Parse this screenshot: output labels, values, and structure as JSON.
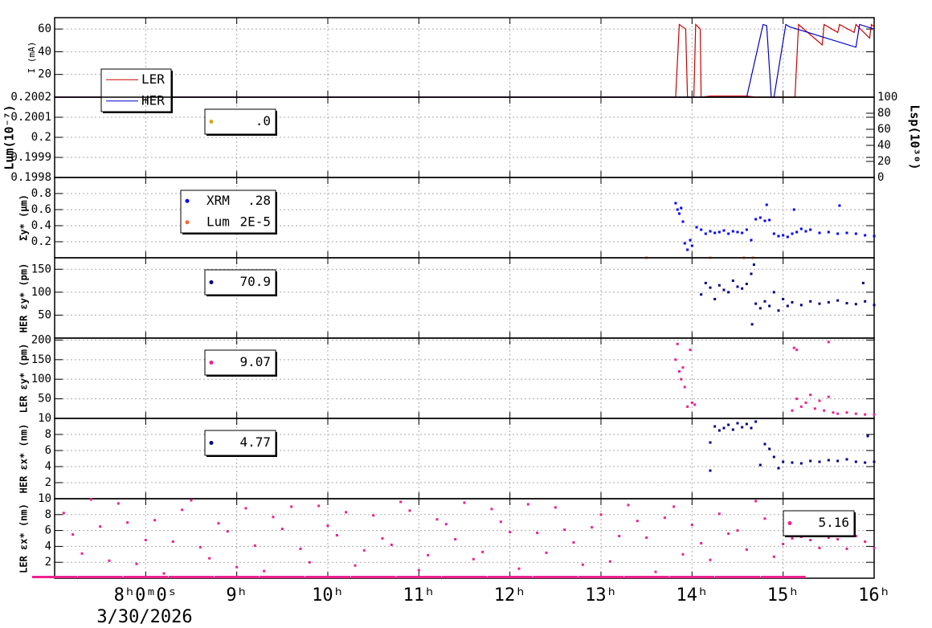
{
  "chart_data": [
    {
      "type": "line",
      "ylabel": "I (mA)",
      "ylim": [
        0,
        70
      ],
      "yticks": [
        20,
        40,
        60
      ],
      "series": [
        {
          "name": "LER",
          "color": "#cc0000",
          "x": [
            7,
            13.82,
            13.86,
            13.93,
            13.95,
            14.02,
            14.04,
            14.09,
            14.1,
            14.2,
            14.6,
            14.7,
            15.13,
            15.17,
            15.43,
            15.45,
            15.6,
            15.62,
            15.78,
            15.8,
            15.95,
            15.97,
            16
          ],
          "values": [
            0,
            0,
            64,
            60,
            0,
            0,
            64,
            60,
            0,
            1,
            1,
            0,
            0,
            64,
            46,
            64,
            57,
            64,
            57,
            64,
            52,
            64,
            62
          ]
        },
        {
          "name": "HER",
          "color": "#0000cc",
          "x": [
            7,
            14.6,
            14.78,
            14.82,
            14.87,
            14.9,
            15.03,
            15.07,
            15.8,
            15.84,
            16
          ],
          "values": [
            0,
            0,
            64,
            63,
            0,
            0,
            64,
            62,
            44,
            64,
            60
          ]
        }
      ]
    },
    {
      "type": "scatter",
      "ylabel": "Lum(10⁻⁷)",
      "y2label": "Lsp(10³⁰)",
      "ylim": [
        0.1998,
        0.2002
      ],
      "yticks": [
        0.1998,
        0.1999,
        0.2,
        0.2001,
        0.2002
      ],
      "y2lim": [
        0,
        100
      ],
      "y2ticks": [
        0,
        20,
        40,
        60,
        80,
        100
      ],
      "series": [
        {
          "color": "#daa520",
          "legend_value": ".0",
          "x": [],
          "values": []
        }
      ]
    },
    {
      "type": "scatter",
      "ylabel": "Σy* (μm)",
      "ylim": [
        0,
        1
      ],
      "yticks": [
        0.2,
        0.4,
        0.6,
        0.8
      ],
      "series": [
        {
          "name": "XRM",
          "legend_value": ".28",
          "color": "#0000ff",
          "x": [
            13.82,
            13.84,
            13.86,
            13.88,
            13.9,
            13.92,
            13.95,
            13.98,
            14.0,
            14.05,
            14.1,
            14.15,
            14.2,
            14.25,
            14.3,
            14.35,
            14.4,
            14.45,
            14.5,
            14.55,
            14.6,
            14.65,
            14.7,
            14.75,
            14.8,
            14.85,
            14.9,
            14.95,
            15.0,
            15.05,
            15.1,
            15.15,
            15.2,
            15.25,
            15.3,
            15.4,
            15.5,
            15.6,
            15.7,
            15.8,
            15.9,
            16.0,
            15.12,
            15.62,
            14.82
          ],
          "values": [
            0.68,
            0.6,
            0.55,
            0.62,
            0.45,
            0.18,
            0.1,
            0.22,
            0.15,
            0.38,
            0.35,
            0.3,
            0.33,
            0.31,
            0.32,
            0.34,
            0.3,
            0.33,
            0.32,
            0.31,
            0.35,
            0.22,
            0.48,
            0.5,
            0.46,
            0.47,
            0.3,
            0.27,
            0.28,
            0.26,
            0.3,
            0.32,
            0.36,
            0.33,
            0.35,
            0.31,
            0.32,
            0.3,
            0.31,
            0.3,
            0.28,
            0.27,
            0.6,
            0.65,
            0.66
          ]
        },
        {
          "name": "Lum",
          "legend_value": "2E-5",
          "color": "#ff6633",
          "x": [
            13.5,
            14.2,
            14.57,
            14.67
          ],
          "values": [
            0,
            0,
            0,
            0
          ]
        }
      ]
    },
    {
      "type": "scatter",
      "ylabel": "HER εy* (pm)",
      "ylim": [
        0,
        175
      ],
      "yticks": [
        50,
        100,
        150
      ],
      "series": [
        {
          "legend_value": "70.9",
          "color": "#000080",
          "x": [
            14.1,
            14.15,
            14.2,
            14.25,
            14.3,
            14.35,
            14.4,
            14.45,
            14.5,
            14.55,
            14.6,
            14.65,
            14.7,
            14.75,
            14.8,
            14.85,
            14.9,
            14.95,
            15.0,
            15.05,
            15.1,
            15.2,
            15.3,
            15.4,
            15.5,
            15.6,
            15.7,
            15.8,
            15.9,
            16.0,
            14.68,
            14.66,
            15.88
          ],
          "values": [
            95,
            120,
            110,
            85,
            115,
            105,
            100,
            125,
            112,
            108,
            118,
            140,
            75,
            65,
            80,
            70,
            100,
            60,
            85,
            70,
            78,
            72,
            80,
            75,
            78,
            82,
            76,
            74,
            80,
            72,
            160,
            30,
            120
          ]
        }
      ]
    },
    {
      "type": "scatter",
      "ylabel": "LER εy* (pm)",
      "ylim": [
        0,
        205
      ],
      "yticks": [
        50,
        100,
        150,
        200
      ],
      "series": [
        {
          "legend_value": "9.07",
          "color": "#f0208c",
          "x": [
            13.82,
            13.84,
            13.86,
            13.88,
            13.9,
            13.92,
            13.95,
            13.98,
            14.0,
            14.03,
            15.1,
            15.12,
            15.15,
            15.2,
            15.25,
            15.3,
            15.35,
            15.4,
            15.45,
            15.5,
            15.55,
            15.6,
            15.7,
            15.8,
            15.9,
            16.0,
            15.15,
            15.5
          ],
          "values": [
            150,
            190,
            120,
            100,
            130,
            80,
            30,
            175,
            40,
            35,
            20,
            180,
            50,
            30,
            40,
            60,
            25,
            45,
            20,
            55,
            15,
            12,
            15,
            12,
            10,
            10,
            175,
            195
          ]
        }
      ]
    },
    {
      "type": "scatter",
      "ylabel": "HER εx* (nm)",
      "ylim": [
        0,
        10
      ],
      "yticks": [
        2,
        4,
        6,
        8,
        10
      ],
      "series": [
        {
          "legend_value": "4.77",
          "color": "#000080",
          "x": [
            14.2,
            14.25,
            14.3,
            14.35,
            14.4,
            14.45,
            14.5,
            14.55,
            14.6,
            14.65,
            14.7,
            14.75,
            14.8,
            14.85,
            14.9,
            14.95,
            15.0,
            15.1,
            15.2,
            15.3,
            15.4,
            15.5,
            15.6,
            15.7,
            15.8,
            15.9,
            16.0,
            14.2,
            15.93
          ],
          "values": [
            7,
            9,
            8.5,
            8.8,
            9.2,
            8.6,
            9.4,
            8.9,
            9.3,
            8.8,
            9.6,
            4.2,
            6.8,
            6.2,
            5.2,
            3.8,
            4.6,
            4.5,
            4.4,
            4.7,
            4.6,
            4.8,
            4.7,
            4.9,
            4.6,
            4.5,
            4.6,
            3.5,
            7.8
          ]
        }
      ]
    },
    {
      "type": "scatter",
      "ylabel": "LER εx* (nm)",
      "ylim": [
        0,
        10
      ],
      "yticks": [
        2,
        4,
        6,
        8,
        10
      ],
      "xlim": [
        7,
        16
      ],
      "xticks": [
        {
          "value": 8,
          "label": "8ʰ0ᵐ0ˢ"
        },
        {
          "value": 9,
          "label": "9ʰ"
        },
        {
          "value": 10,
          "label": "10ʰ"
        },
        {
          "value": 11,
          "label": "11ʰ"
        },
        {
          "value": 12,
          "label": "12ʰ"
        },
        {
          "value": 13,
          "label": "13ʰ"
        },
        {
          "value": 14,
          "label": "14ʰ"
        },
        {
          "value": 15,
          "label": "15ʰ"
        },
        {
          "value": 16,
          "label": "16ʰ"
        }
      ],
      "date": "3/30/2026",
      "series": [
        {
          "legend_value": "5.16",
          "color": "#f0208c",
          "x": [
            7.1,
            7.3,
            7.5,
            7.7,
            7.9,
            8.1,
            8.3,
            8.5,
            8.7,
            8.9,
            9.1,
            9.3,
            9.5,
            9.7,
            9.9,
            10.1,
            10.3,
            10.5,
            10.7,
            10.9,
            11.1,
            11.3,
            11.5,
            11.7,
            11.9,
            12.1,
            12.3,
            12.5,
            12.7,
            12.9,
            13.1,
            13.3,
            13.5,
            13.7,
            13.9,
            14.1,
            14.3,
            14.5,
            14.7,
            14.9,
            7.2,
            7.4,
            7.6,
            7.8,
            8.0,
            8.2,
            8.4,
            8.6,
            8.8,
            9.0,
            9.2,
            9.4,
            9.6,
            9.8,
            10.0,
            10.2,
            10.4,
            10.6,
            10.8,
            11.0,
            11.2,
            11.4,
            11.6,
            11.8,
            12.0,
            12.2,
            12.4,
            12.6,
            12.8,
            13.0,
            13.2,
            13.4,
            13.6,
            13.8,
            14.0,
            14.2,
            14.4,
            14.6,
            14.8,
            15.0,
            7,
            7.5,
            8,
            8.5,
            9,
            9.5,
            10,
            10.5,
            11,
            11.5,
            12,
            12.5,
            13,
            13.5,
            14,
            14.5,
            15,
            15.1,
            15.2,
            15.3,
            15.4,
            15.5,
            15.6,
            15.7,
            15.8,
            15.9,
            16.0
          ],
          "values": [
            8.2,
            3.1,
            6.5,
            9.4,
            1.8,
            7.3,
            4.6,
            9.8,
            2.5,
            5.9,
            8.8,
            0.9,
            6.2,
            3.7,
            9.1,
            5.4,
            1.6,
            7.9,
            4.2,
            8.5,
            2.9,
            6.8,
            9.5,
            3.3,
            7.1,
            1.2,
            5.7,
            8.9,
            4.5,
            6.4,
            2.1,
            9.2,
            5.1,
            7.6,
            3.0,
            4.4,
            8.1,
            6.0,
            9.7,
            2.7,
            5.5,
            9.9,
            2.2,
            7.0,
            4.8,
            0.6,
            8.6,
            3.9,
            6.9,
            1.4,
            4.1,
            7.7,
            9.0,
            2.0,
            6.6,
            8.3,
            3.5,
            5.0,
            9.6,
            1.0,
            7.4,
            4.9,
            2.4,
            8.7,
            5.8,
            9.3,
            3.2,
            6.1,
            1.7,
            8.0,
            5.3,
            7.2,
            0.8,
            9.0,
            6.7,
            2.3,
            5.6,
            3.6,
            7.5,
            4.3,
            0.15,
            0.15,
            0.15,
            0.15,
            0.15,
            0.15,
            0.15,
            0.15,
            0.15,
            0.15,
            0.15,
            0.15,
            0.15,
            0.15,
            0.15,
            0.15,
            0.15,
            5,
            5.2,
            4.8,
            3.8,
            5.1,
            4.9,
            3.7,
            5.3,
            4.6,
            3.8
          ]
        }
      ]
    }
  ]
}
